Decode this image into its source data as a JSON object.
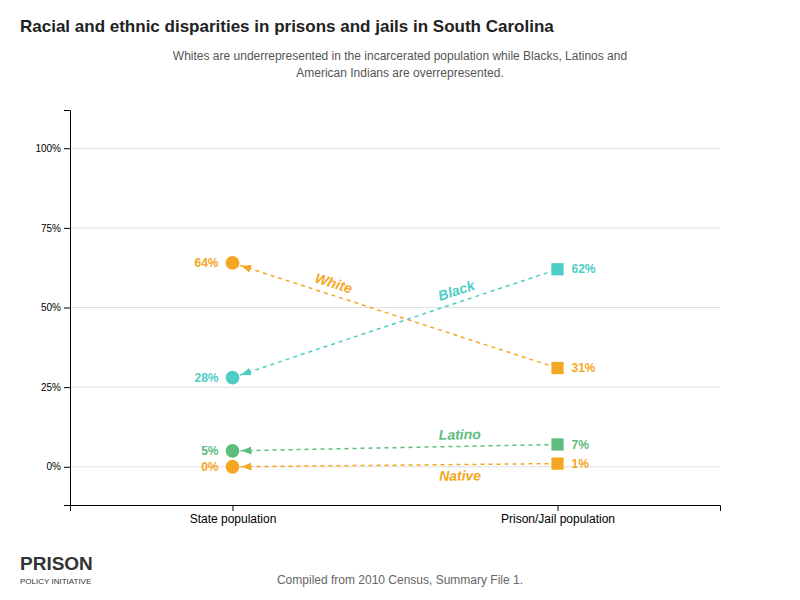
{
  "chart_data": {
    "type": "slope",
    "title": "Racial and ethnic disparities in prisons and jails in South Carolina",
    "subtitle": "Whites are underrepresented in the incarcerated population while Blacks, Latinos and\nAmerican Indians are overrepresented.",
    "categories": [
      "State population",
      "Prison/Jail population"
    ],
    "series": [
      {
        "name": "White",
        "color": "#f5a623",
        "values": [
          64,
          31
        ],
        "value_labels": [
          "64%",
          "31%"
        ]
      },
      {
        "name": "Black",
        "color": "#4ecdc4",
        "values": [
          28,
          62
        ],
        "value_labels": [
          "28%",
          "62%"
        ]
      },
      {
        "name": "Latino",
        "color": "#5dbd7e",
        "values": [
          5,
          7
        ],
        "value_labels": [
          "5%",
          "7%"
        ]
      },
      {
        "name": "Native",
        "color": "#f5a623",
        "values": [
          0,
          1
        ],
        "value_labels": [
          "0%",
          "1%"
        ]
      }
    ],
    "ylim": [
      -12,
      112
    ],
    "yticks": [
      {
        "value": 0,
        "label": "0%"
      },
      {
        "value": 25,
        "label": "25%"
      },
      {
        "value": 50,
        "label": "50%"
      },
      {
        "value": 75,
        "label": "75%"
      },
      {
        "value": 100,
        "label": "100%"
      }
    ],
    "grid": true,
    "data_labels": true,
    "line_style": "dashed",
    "footer": "Compiled from 2010 Census, Summary File 1.",
    "annotations": [
      "PRISON",
      "POLICY INITIATIVE"
    ]
  }
}
